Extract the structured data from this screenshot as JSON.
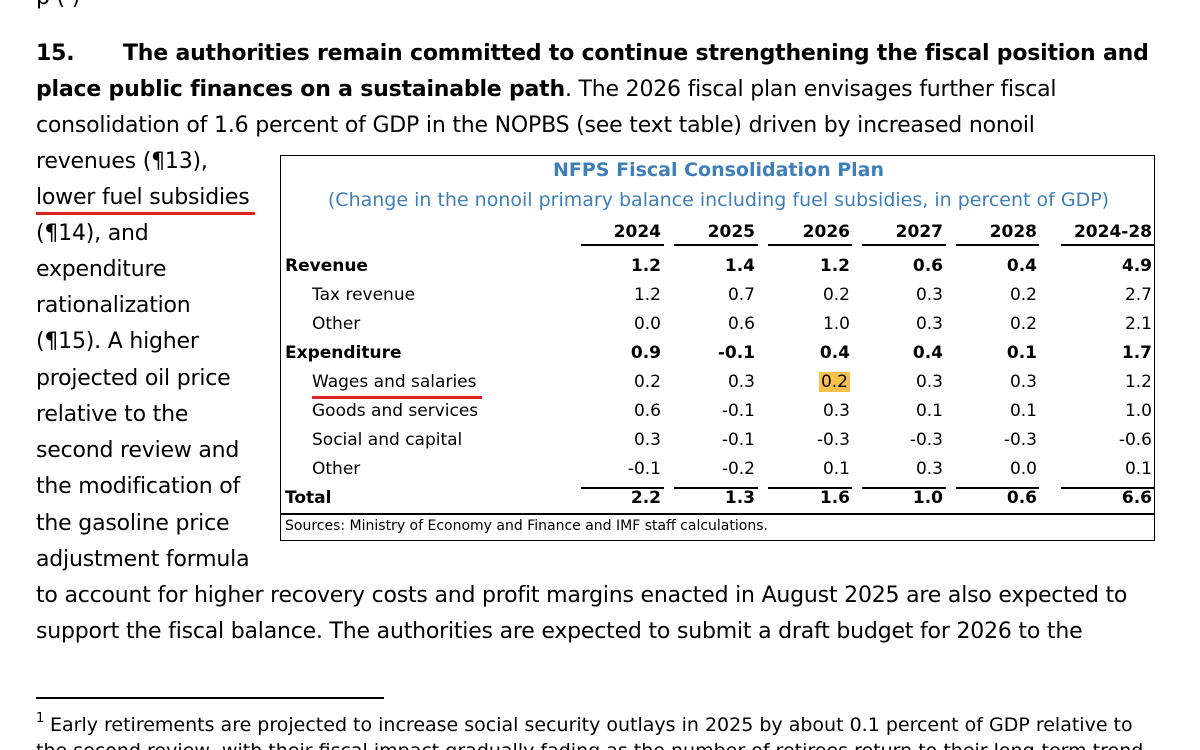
{
  "top_fragment": "p                (   )",
  "paragraph": {
    "number": "15.",
    "bold_line1": "The authorities remain committed to continue strengthening the fiscal position and",
    "bold_line2": "place public finances on a sustainable path",
    "line2_rest": ". The 2026 fiscal plan envisages further fiscal",
    "line3": "consolidation of 1.6 percent of GDP in the NOPBS (see text table) driven by increased nonoil",
    "wrapped_lines": [
      "revenues (¶13),",
      "lower fuel subsidies",
      "(¶14), and",
      "expenditure",
      "rationalization",
      "(¶15). A higher",
      "projected oil price",
      "relative to the",
      "second review and",
      "the modification of",
      "the gasoline price",
      "adjustment formula"
    ],
    "line_after_1": "to account for higher recovery costs and profit margins enacted in August 2025 are also expected to",
    "line_after_2": "support the fiscal balance. The authorities are expected to submit a draft budget for 2026 to the"
  },
  "table": {
    "title": "NFPS Fiscal Consolidation Plan",
    "subtitle": "(Change in the nonoil primary balance including fuel subsidies, in percent of GDP)",
    "columns": [
      "2024",
      "2025",
      "2026",
      "2027",
      "2028",
      "2024-28"
    ],
    "rows": [
      {
        "label": "Revenue",
        "bold": true,
        "indent": false,
        "values": [
          "1.2",
          "1.4",
          "1.2",
          "0.6",
          "0.4",
          "4.9"
        ]
      },
      {
        "label": "Tax revenue",
        "bold": false,
        "indent": true,
        "values": [
          "1.2",
          "0.7",
          "0.2",
          "0.3",
          "0.2",
          "2.7"
        ]
      },
      {
        "label": "Other",
        "bold": false,
        "indent": true,
        "values": [
          "0.0",
          "0.6",
          "1.0",
          "0.3",
          "0.2",
          "2.1"
        ]
      },
      {
        "label": "Expenditure",
        "bold": true,
        "indent": false,
        "values": [
          "0.9",
          "-0.1",
          "0.4",
          "0.4",
          "0.1",
          "1.7"
        ]
      },
      {
        "label": "Wages and salaries",
        "bold": false,
        "indent": true,
        "values": [
          "0.2",
          "0.3",
          "0.2",
          "0.3",
          "0.3",
          "1.2"
        ]
      },
      {
        "label": "Goods and services",
        "bold": false,
        "indent": true,
        "values": [
          "0.6",
          "-0.1",
          "0.3",
          "0.1",
          "0.1",
          "1.0"
        ]
      },
      {
        "label": "Social and capital",
        "bold": false,
        "indent": true,
        "values": [
          "0.3",
          "-0.1",
          "-0.3",
          "-0.3",
          "-0.3",
          "-0.6"
        ]
      },
      {
        "label": "Other",
        "bold": false,
        "indent": true,
        "values": [
          "-0.1",
          "-0.2",
          "0.1",
          "0.3",
          "0.0",
          "0.1"
        ]
      },
      {
        "label": "Total",
        "bold": true,
        "indent": false,
        "values": [
          "2.2",
          "1.3",
          "1.6",
          "1.0",
          "0.6",
          "6.6"
        ]
      }
    ],
    "sources": "Sources: Ministry of Economy and Finance and IMF staff calculations.",
    "highlight_color": "#f7c04a",
    "title_color": "#3f7fb8"
  },
  "annotation_color": "#e02020",
  "footnote": {
    "marker": "1",
    "line1": "Early retirements are projected to increase social security outlays in 2025 by about 0.1 percent of GDP relative to",
    "line2": "the second review, with their fiscal impact gradually fading as the number of retirees return to their long-term trend"
  }
}
